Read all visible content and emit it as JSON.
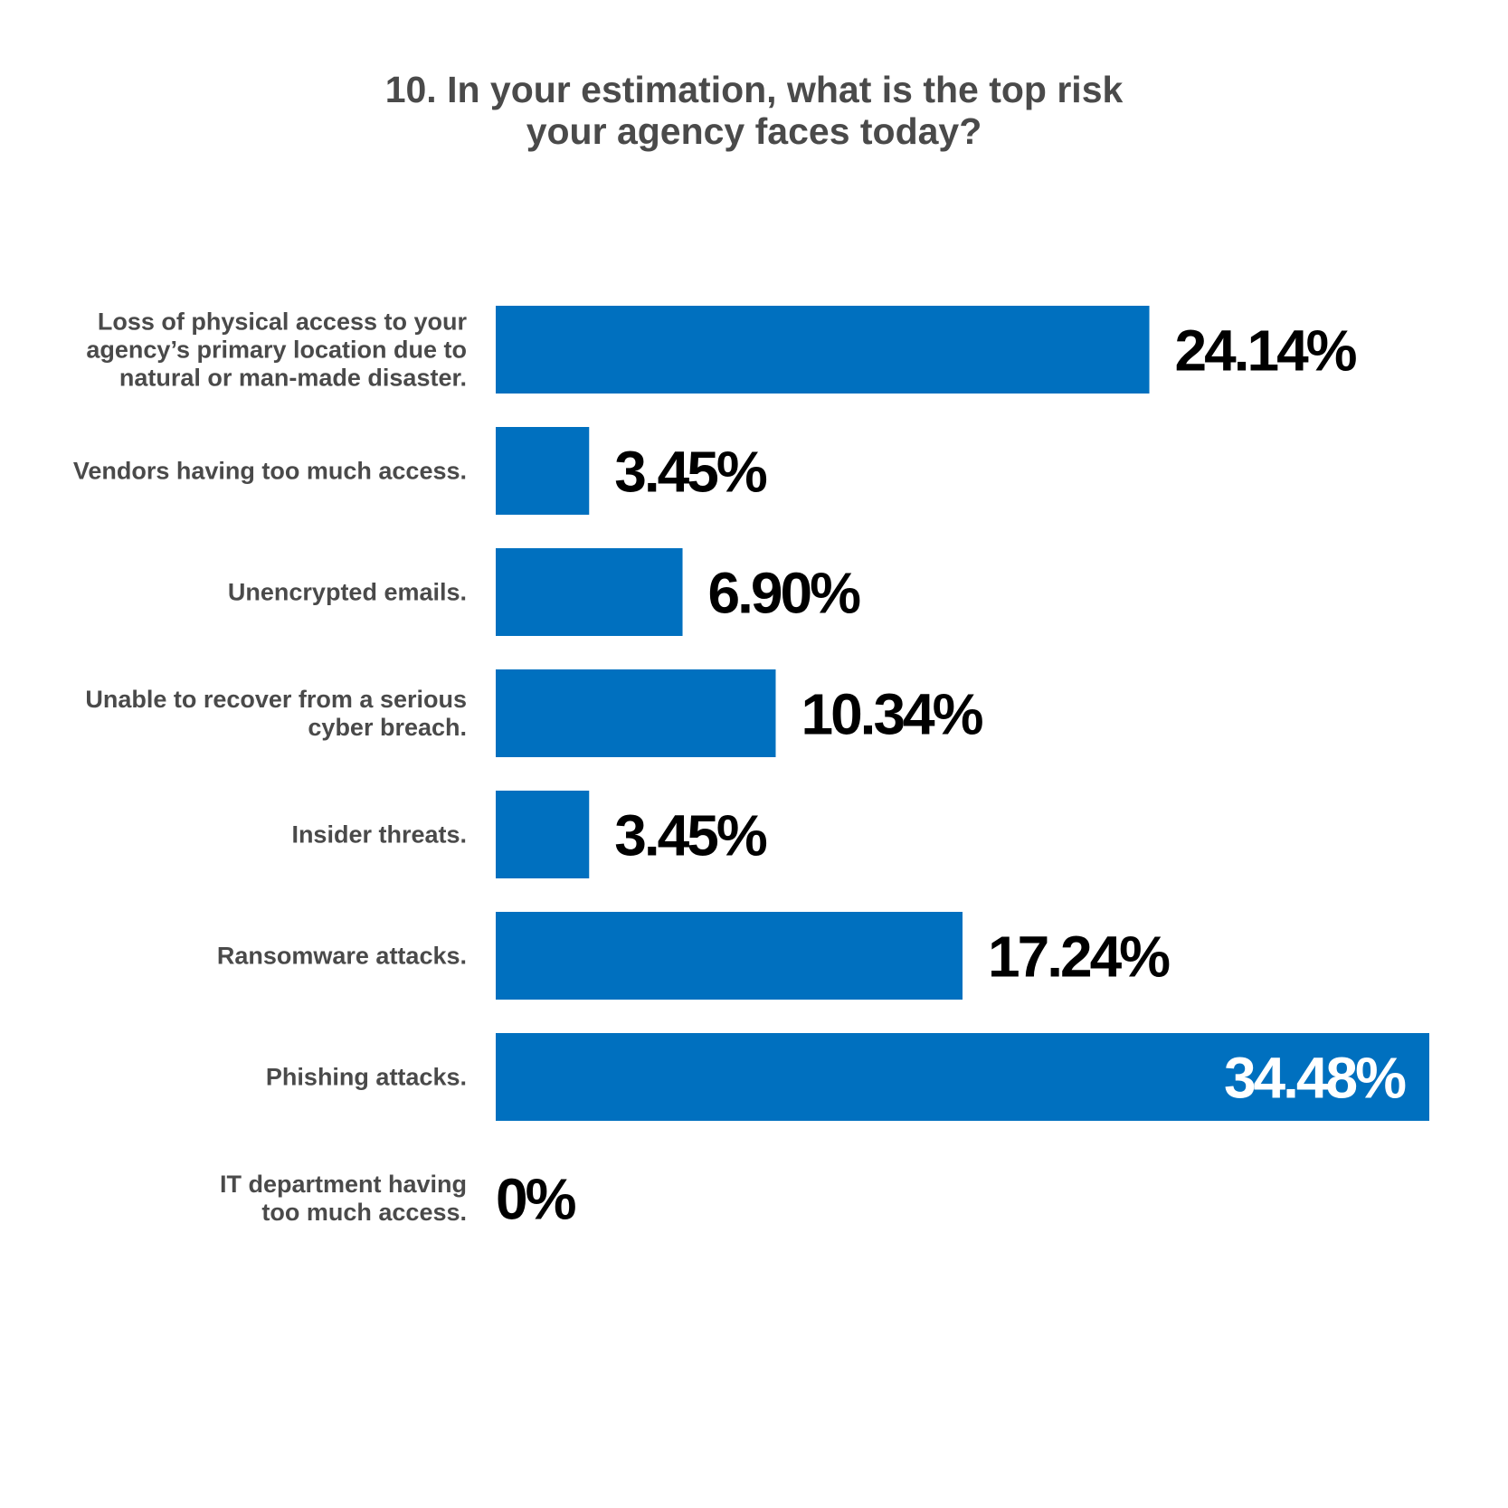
{
  "chart_data": {
    "type": "bar",
    "orientation": "horizontal",
    "title_lines": [
      "10. In your estimation, what is the top risk",
      "your agency faces today?"
    ],
    "categories": [
      [
        "Loss of physical access to your",
        "agency’s primary location due to",
        "natural or man-made disaster."
      ],
      [
        "Vendors having too much access."
      ],
      [
        "Unencrypted emails."
      ],
      [
        "Unable to recover from a serious",
        "cyber breach."
      ],
      [
        "Insider threats."
      ],
      [
        "Ransomware attacks."
      ],
      [
        "Phishing attacks."
      ],
      [
        "IT department having",
        "too much access."
      ]
    ],
    "values": [
      24.14,
      3.45,
      6.9,
      10.34,
      3.45,
      17.24,
      34.48,
      0
    ],
    "value_labels": [
      "24.14%",
      "3.45%",
      "6.90%",
      "10.34%",
      "3.45%",
      "17.24%",
      "34.48%",
      "0%"
    ],
    "xlim": [
      0,
      34.48
    ],
    "grid": false,
    "legend": "none",
    "bar_color": "#0070bf",
    "label_color": "#4a4a4a",
    "value_color": "#000000",
    "inside_value_color": "#ffffff"
  }
}
